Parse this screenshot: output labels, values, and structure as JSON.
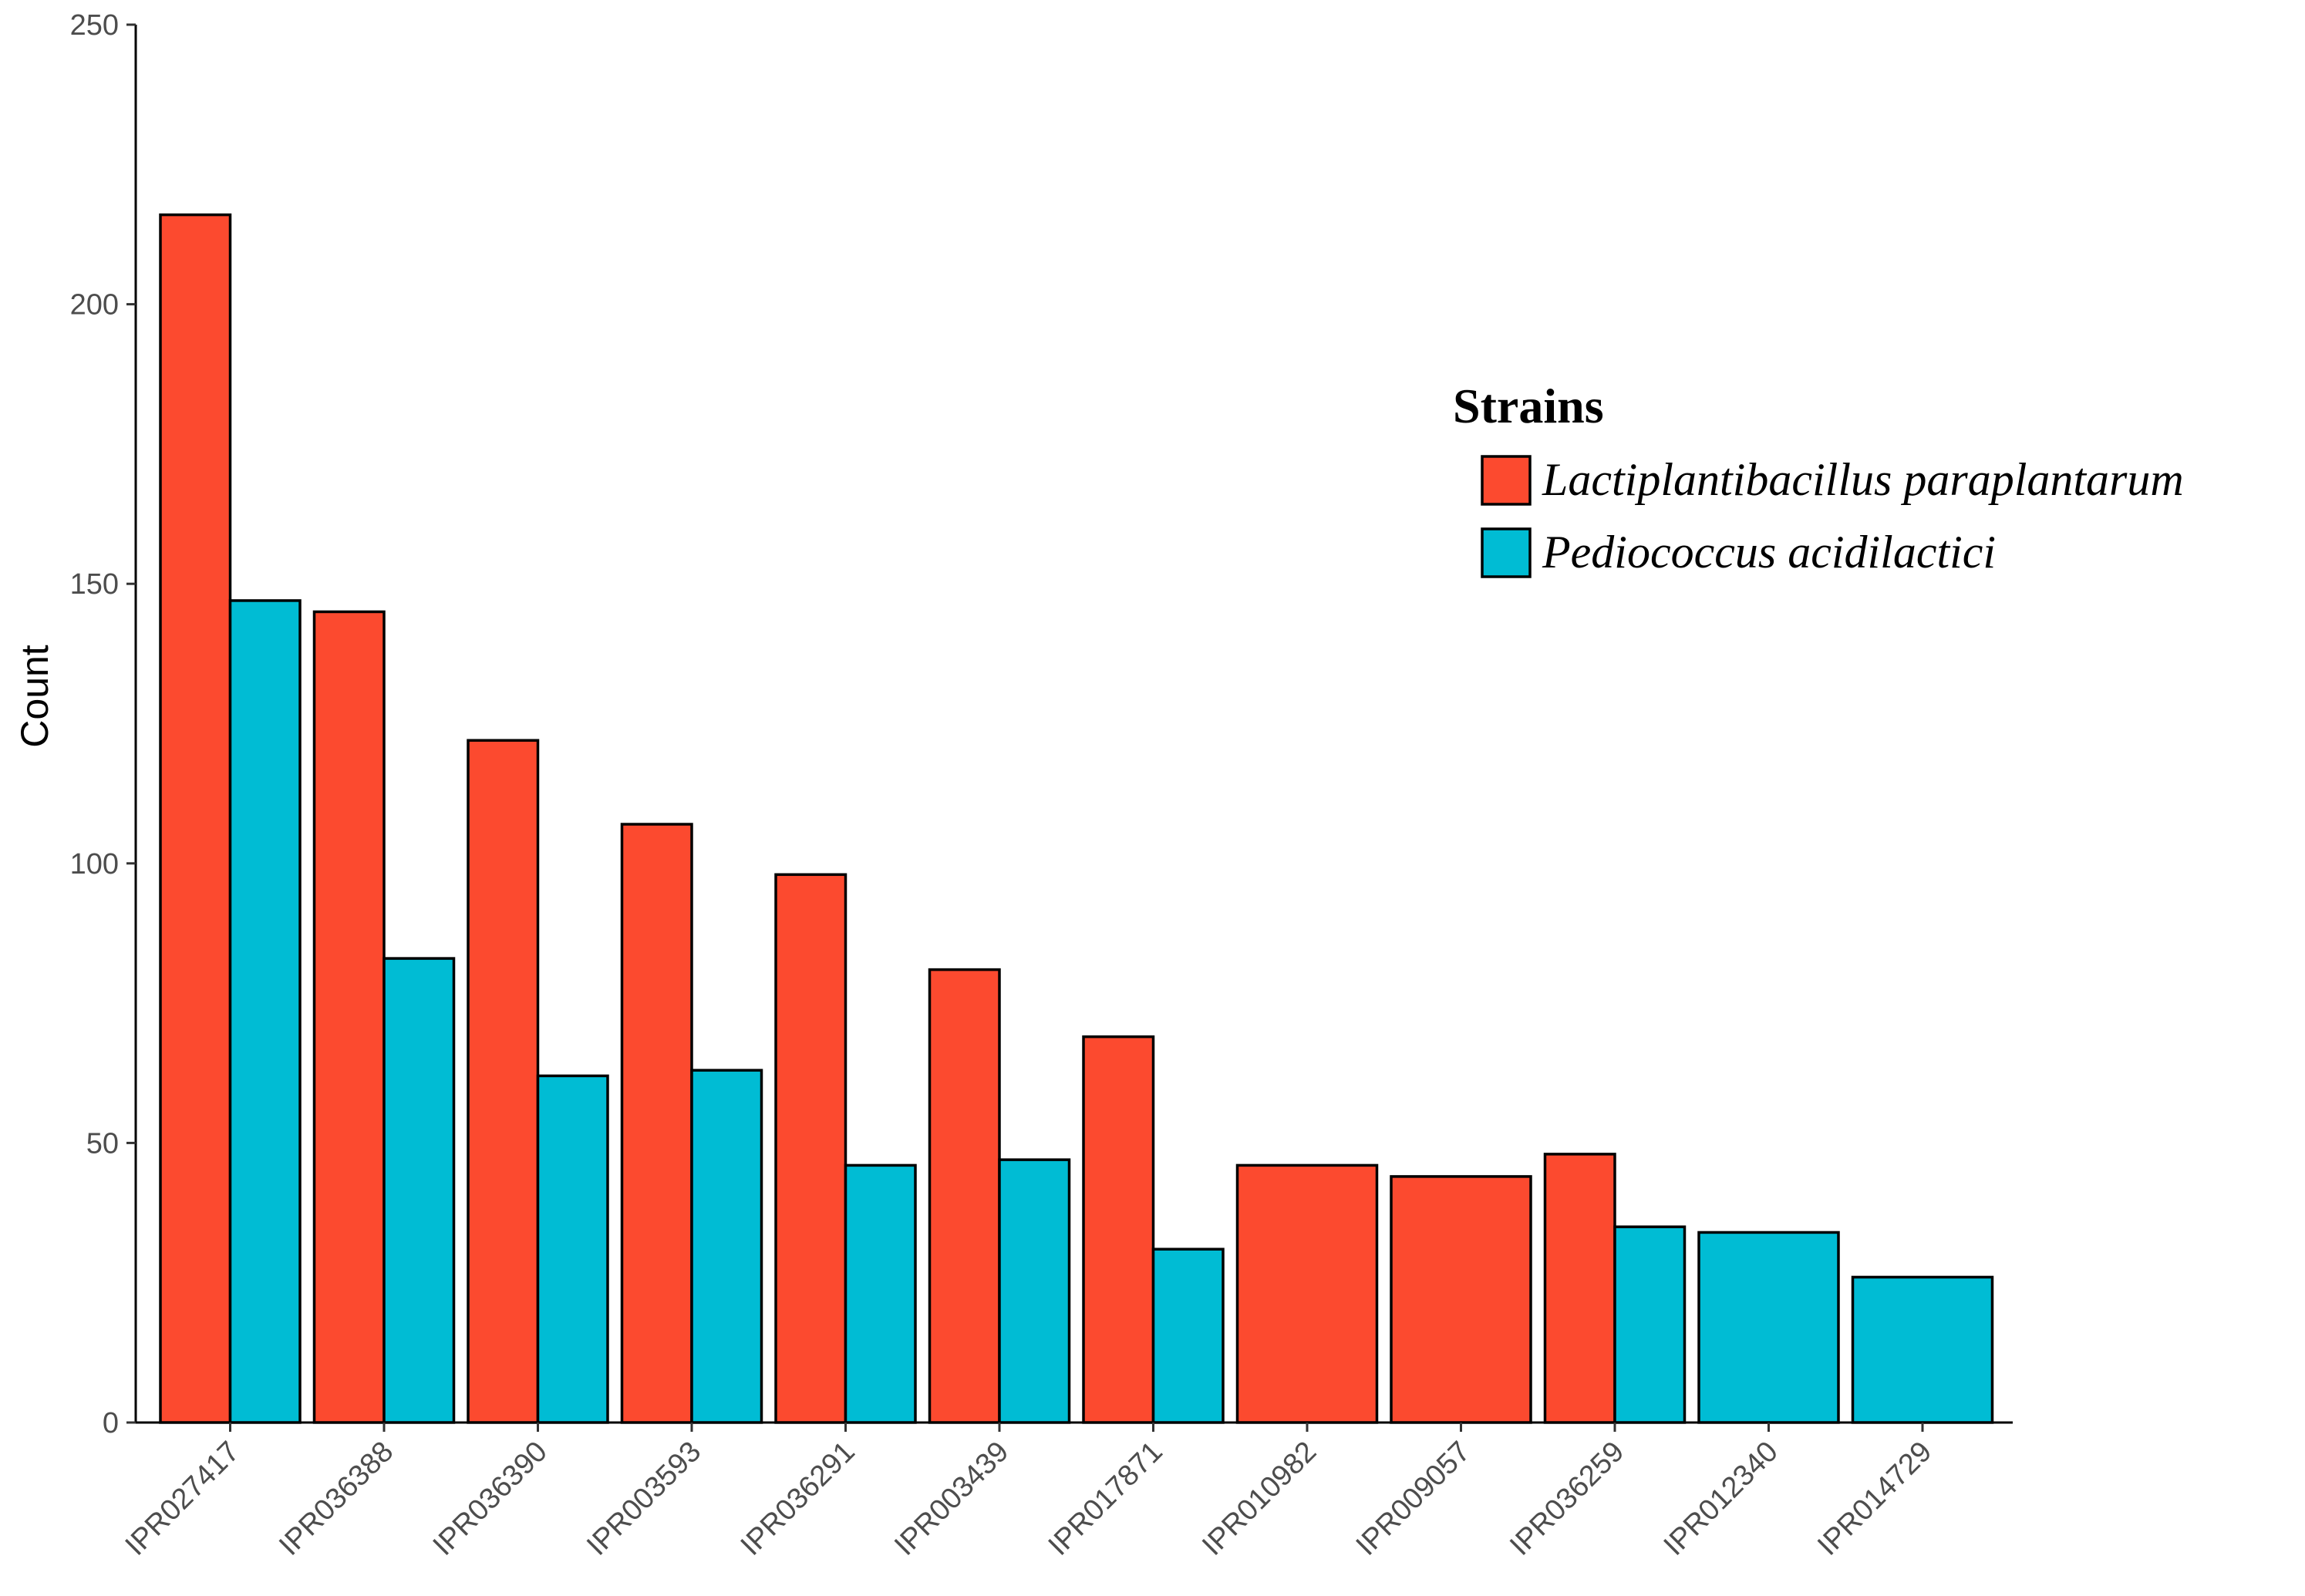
{
  "chart_data": {
    "type": "bar",
    "title": "",
    "xlabel": "",
    "ylabel": "Count",
    "ylim": [
      0,
      250
    ],
    "yticks": [
      0,
      50,
      100,
      150,
      200,
      250
    ],
    "grid": false,
    "legend": {
      "title": "Strains",
      "position": "right"
    },
    "categories": [
      "IPR027417",
      "IPR036388",
      "IPR036390",
      "IPR003593",
      "IPR036291",
      "IPR003439",
      "IPR017871",
      "IPR010982",
      "IPR009057",
      "IPR036259",
      "IPR012340",
      "IPR014729"
    ],
    "series": [
      {
        "name": "Lactiplantibacillus paraplantarum",
        "color": "#fc4a2f",
        "values": [
          216,
          145,
          122,
          107,
          98,
          81,
          69,
          46,
          44,
          48,
          null,
          null
        ]
      },
      {
        "name": "Pediococcus acidilactici",
        "color": "#00bcd4",
        "values": [
          147,
          83,
          62,
          63,
          46,
          47,
          31,
          null,
          null,
          35,
          34,
          26
        ]
      }
    ]
  }
}
